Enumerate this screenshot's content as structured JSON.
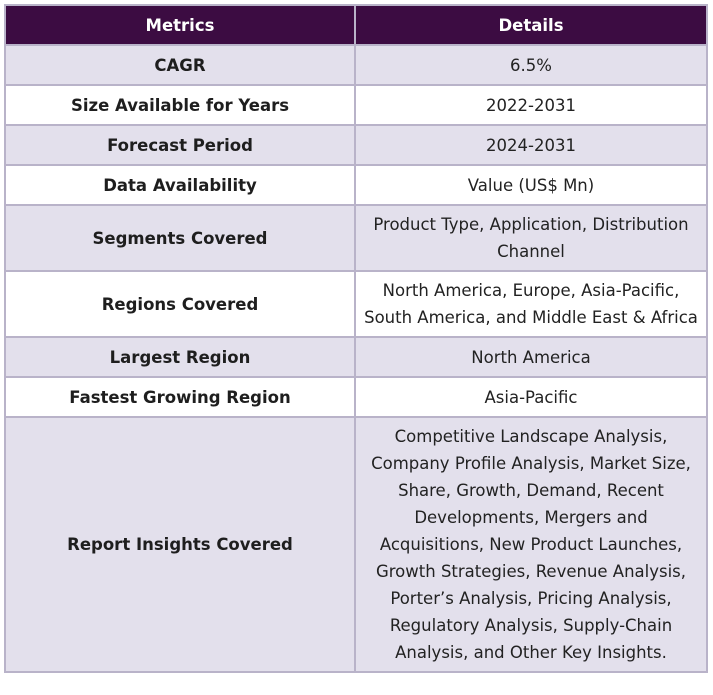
{
  "table": {
    "headers": [
      "Metrics",
      "Details"
    ],
    "rows": [
      {
        "metric": "CAGR",
        "details": "6.5%"
      },
      {
        "metric": "Size Available for Years",
        "details": "2022-2031"
      },
      {
        "metric": "Forecast Period",
        "details": "2024-2031"
      },
      {
        "metric": "Data Availability",
        "details": "Value (US$ Mn)"
      },
      {
        "metric": "Segments Covered",
        "details": "Product Type, Application, Distribution Channel"
      },
      {
        "metric": "Regions Covered",
        "details": "North America, Europe, Asia-Pacific, South America, and Middle East & Africa"
      },
      {
        "metric": "Largest Region",
        "details": "North America"
      },
      {
        "metric": "Fastest Growing Region",
        "details": "Asia-Pacific"
      },
      {
        "metric": "Report Insights Covered",
        "details": "Competitive Landscape Analysis, Company Profile Analysis, Market Size, Share, Growth, Demand, Recent Developments, Mergers and Acquisitions, New Product Launches, Growth Strategies, Revenue Analysis, Porter’s Analysis, Pricing Analysis, Regulatory Analysis, Supply-Chain Analysis, and Other Key Insights."
      }
    ]
  },
  "colors": {
    "header_bg": "#3c0c42",
    "header_text": "#ffffff",
    "row_shaded": "#e3e0ec",
    "row_plain": "#ffffff",
    "border": "#b9b3c9"
  }
}
